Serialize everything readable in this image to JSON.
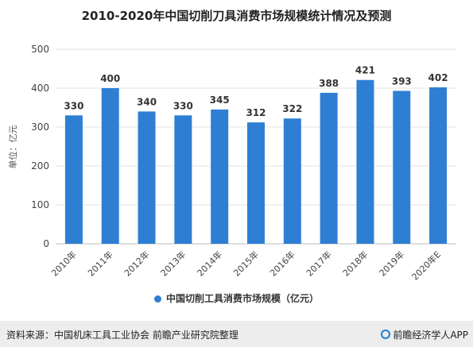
{
  "title": "2010-2020年中国切削刀具消费市场规模统计情况及预测",
  "chart_data": {
    "type": "bar",
    "categories": [
      "2010年",
      "2011年",
      "2012年",
      "2013年",
      "2014年",
      "2015年",
      "2016年",
      "2017年",
      "2018年",
      "2019年",
      "2020年E"
    ],
    "series": [
      {
        "name": "中国切削工具消费市场规模（亿元）",
        "values": [
          330,
          400,
          340,
          330,
          345,
          312,
          322,
          388,
          421,
          393,
          402
        ],
        "color": "#2e7fd4"
      }
    ],
    "ylabel": "单位：亿元",
    "ylim": [
      0,
      500
    ],
    "yticks": [
      0,
      100,
      200,
      300,
      400,
      500
    ],
    "grid": true,
    "legend_position": "bottom"
  },
  "legend": {
    "label": "中国切削工具消费市场规模（亿元）",
    "color": "#2e7fd4"
  },
  "footer": {
    "source": "资料来源：中国机床工具工业协会 前瞻产业研究院整理",
    "brand": "前瞻经济学人APP"
  }
}
